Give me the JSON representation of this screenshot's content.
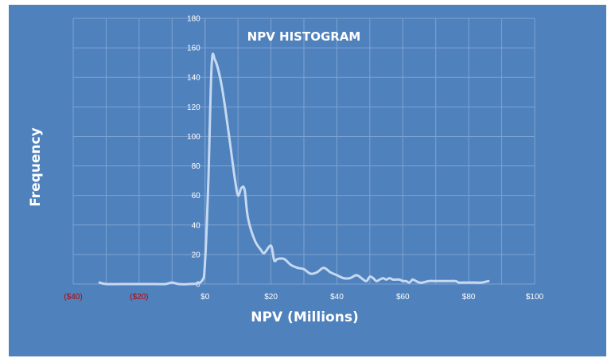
{
  "chart_data": {
    "type": "line",
    "title": "NPV HISTOGRAM",
    "xlabel": "NPV (Millions)",
    "ylabel": "Frequency",
    "xlim": [
      -40,
      100
    ],
    "ylim": [
      0,
      180
    ],
    "x_ticks": [
      {
        "value": -40,
        "label": "($40)",
        "negative": true
      },
      {
        "value": -20,
        "label": "($20)",
        "negative": true
      },
      {
        "value": 0,
        "label": "$0",
        "negative": false
      },
      {
        "value": 20,
        "label": "$20",
        "negative": false
      },
      {
        "value": 40,
        "label": "$40",
        "negative": false
      },
      {
        "value": 60,
        "label": "$60",
        "negative": false
      },
      {
        "value": 80,
        "label": "$80",
        "negative": false
      },
      {
        "value": 100,
        "label": "$100",
        "negative": false
      }
    ],
    "y_ticks": [
      0,
      20,
      40,
      60,
      80,
      100,
      120,
      140,
      160,
      180
    ],
    "grid": true,
    "legend": "none",
    "series": [
      {
        "x": [
          -32,
          -30,
          -25,
          -20,
          -15,
          -12,
          -10,
          -8,
          -5,
          -1,
          0,
          1,
          2,
          3,
          5,
          7,
          9,
          10,
          11,
          12,
          13,
          15,
          17,
          18,
          20,
          21,
          22,
          24,
          26,
          28,
          30,
          32,
          34,
          36,
          38,
          40,
          42,
          44,
          46,
          48,
          49,
          50,
          51,
          52,
          53,
          54,
          55,
          56,
          57,
          58,
          59,
          60,
          61,
          62,
          63,
          64,
          65,
          66,
          68,
          70,
          72,
          74,
          76,
          77,
          78,
          80,
          82,
          84,
          86
        ],
        "y": [
          1,
          0,
          0,
          0,
          0,
          0,
          1,
          0,
          0,
          2,
          15,
          70,
          148,
          152,
          135,
          105,
          72,
          60,
          65,
          64,
          45,
          30,
          23,
          21,
          26,
          16,
          17,
          17,
          13,
          11,
          10,
          7,
          8,
          11,
          8,
          6,
          4,
          4,
          6,
          3,
          2,
          5,
          4,
          2,
          3,
          4,
          3,
          4,
          3,
          3,
          3,
          2,
          2,
          1,
          3,
          2,
          1,
          1,
          2,
          2,
          2,
          2,
          2,
          1,
          1,
          1,
          1,
          1,
          2
        ]
      }
    ],
    "colors": {
      "background": "#4f81bd",
      "line": "#c6d9f1",
      "grid": "#7ea3d2",
      "tick_text": "#ffffff",
      "negative_tick_text": "#c00000",
      "title_text": "#ffffff"
    }
  }
}
